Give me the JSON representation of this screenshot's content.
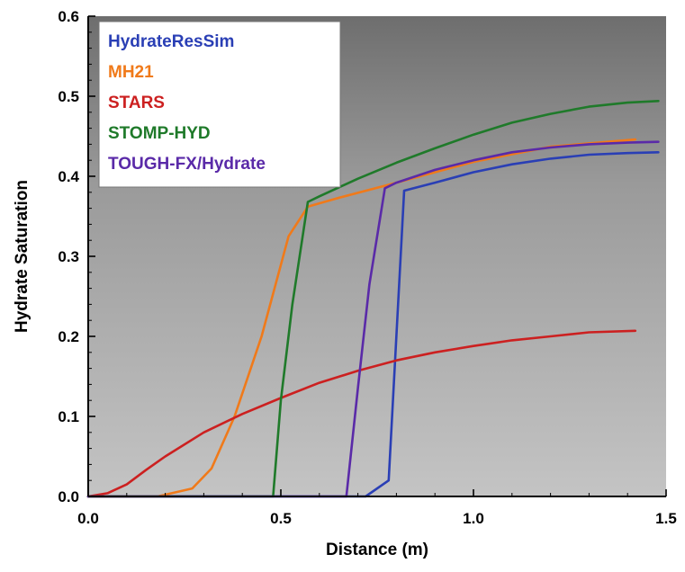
{
  "chart_data": {
    "type": "line",
    "title": "",
    "xlabel": "Distance (m)",
    "ylabel": "Hydrate Saturation",
    "xlim": [
      0.0,
      1.5
    ],
    "ylim": [
      0.0,
      0.6
    ],
    "xticks": [
      "0.0",
      "0.5",
      "1.0",
      "1.5"
    ],
    "yticks": [
      "0.0",
      "0.1",
      "0.2",
      "0.3",
      "0.4",
      "0.5",
      "0.6"
    ],
    "background": "gradient dark gray (top) to light gray (bottom)",
    "grid": false,
    "legend_position": "top-left",
    "series": [
      {
        "name": "HydrateResSim",
        "color": "#2a3fb5",
        "points": [
          [
            0.0,
            0.0
          ],
          [
            0.72,
            0.0
          ],
          [
            0.78,
            0.02
          ],
          [
            0.82,
            0.382
          ],
          [
            0.9,
            0.392
          ],
          [
            1.0,
            0.405
          ],
          [
            1.1,
            0.415
          ],
          [
            1.2,
            0.422
          ],
          [
            1.3,
            0.427
          ],
          [
            1.4,
            0.429
          ],
          [
            1.48,
            0.43
          ]
        ]
      },
      {
        "name": "MH21",
        "color": "#f07a1a",
        "points": [
          [
            0.0,
            0.0
          ],
          [
            0.18,
            0.0
          ],
          [
            0.27,
            0.01
          ],
          [
            0.32,
            0.035
          ],
          [
            0.38,
            0.1
          ],
          [
            0.45,
            0.2
          ],
          [
            0.52,
            0.325
          ],
          [
            0.57,
            0.362
          ],
          [
            0.65,
            0.373
          ],
          [
            0.8,
            0.392
          ],
          [
            1.0,
            0.418
          ],
          [
            1.2,
            0.437
          ],
          [
            1.42,
            0.446
          ]
        ]
      },
      {
        "name": "STARS",
        "color": "#cc2020",
        "points": [
          [
            0.0,
            0.0
          ],
          [
            0.05,
            0.004
          ],
          [
            0.1,
            0.015
          ],
          [
            0.15,
            0.033
          ],
          [
            0.2,
            0.05
          ],
          [
            0.3,
            0.08
          ],
          [
            0.4,
            0.103
          ],
          [
            0.5,
            0.123
          ],
          [
            0.6,
            0.142
          ],
          [
            0.7,
            0.157
          ],
          [
            0.8,
            0.17
          ],
          [
            0.9,
            0.18
          ],
          [
            1.0,
            0.188
          ],
          [
            1.1,
            0.195
          ],
          [
            1.2,
            0.2
          ],
          [
            1.3,
            0.205
          ],
          [
            1.42,
            0.207
          ]
        ]
      },
      {
        "name": "STOMP-HYD",
        "color": "#1f7a2a",
        "points": [
          [
            0.0,
            0.0
          ],
          [
            0.48,
            0.0
          ],
          [
            0.5,
            0.12
          ],
          [
            0.53,
            0.24
          ],
          [
            0.57,
            0.368
          ],
          [
            0.6,
            0.375
          ],
          [
            0.7,
            0.397
          ],
          [
            0.8,
            0.417
          ],
          [
            0.9,
            0.435
          ],
          [
            1.0,
            0.452
          ],
          [
            1.1,
            0.467
          ],
          [
            1.2,
            0.478
          ],
          [
            1.3,
            0.487
          ],
          [
            1.4,
            0.492
          ],
          [
            1.48,
            0.494
          ]
        ]
      },
      {
        "name": "TOUGH-FX/Hydrate",
        "color": "#5a2aa8",
        "points": [
          [
            0.0,
            0.0
          ],
          [
            0.67,
            0.0
          ],
          [
            0.7,
            0.135
          ],
          [
            0.73,
            0.265
          ],
          [
            0.77,
            0.385
          ],
          [
            0.8,
            0.392
          ],
          [
            0.9,
            0.408
          ],
          [
            1.0,
            0.42
          ],
          [
            1.1,
            0.43
          ],
          [
            1.2,
            0.436
          ],
          [
            1.3,
            0.44
          ],
          [
            1.4,
            0.442
          ],
          [
            1.48,
            0.443
          ]
        ]
      }
    ]
  }
}
